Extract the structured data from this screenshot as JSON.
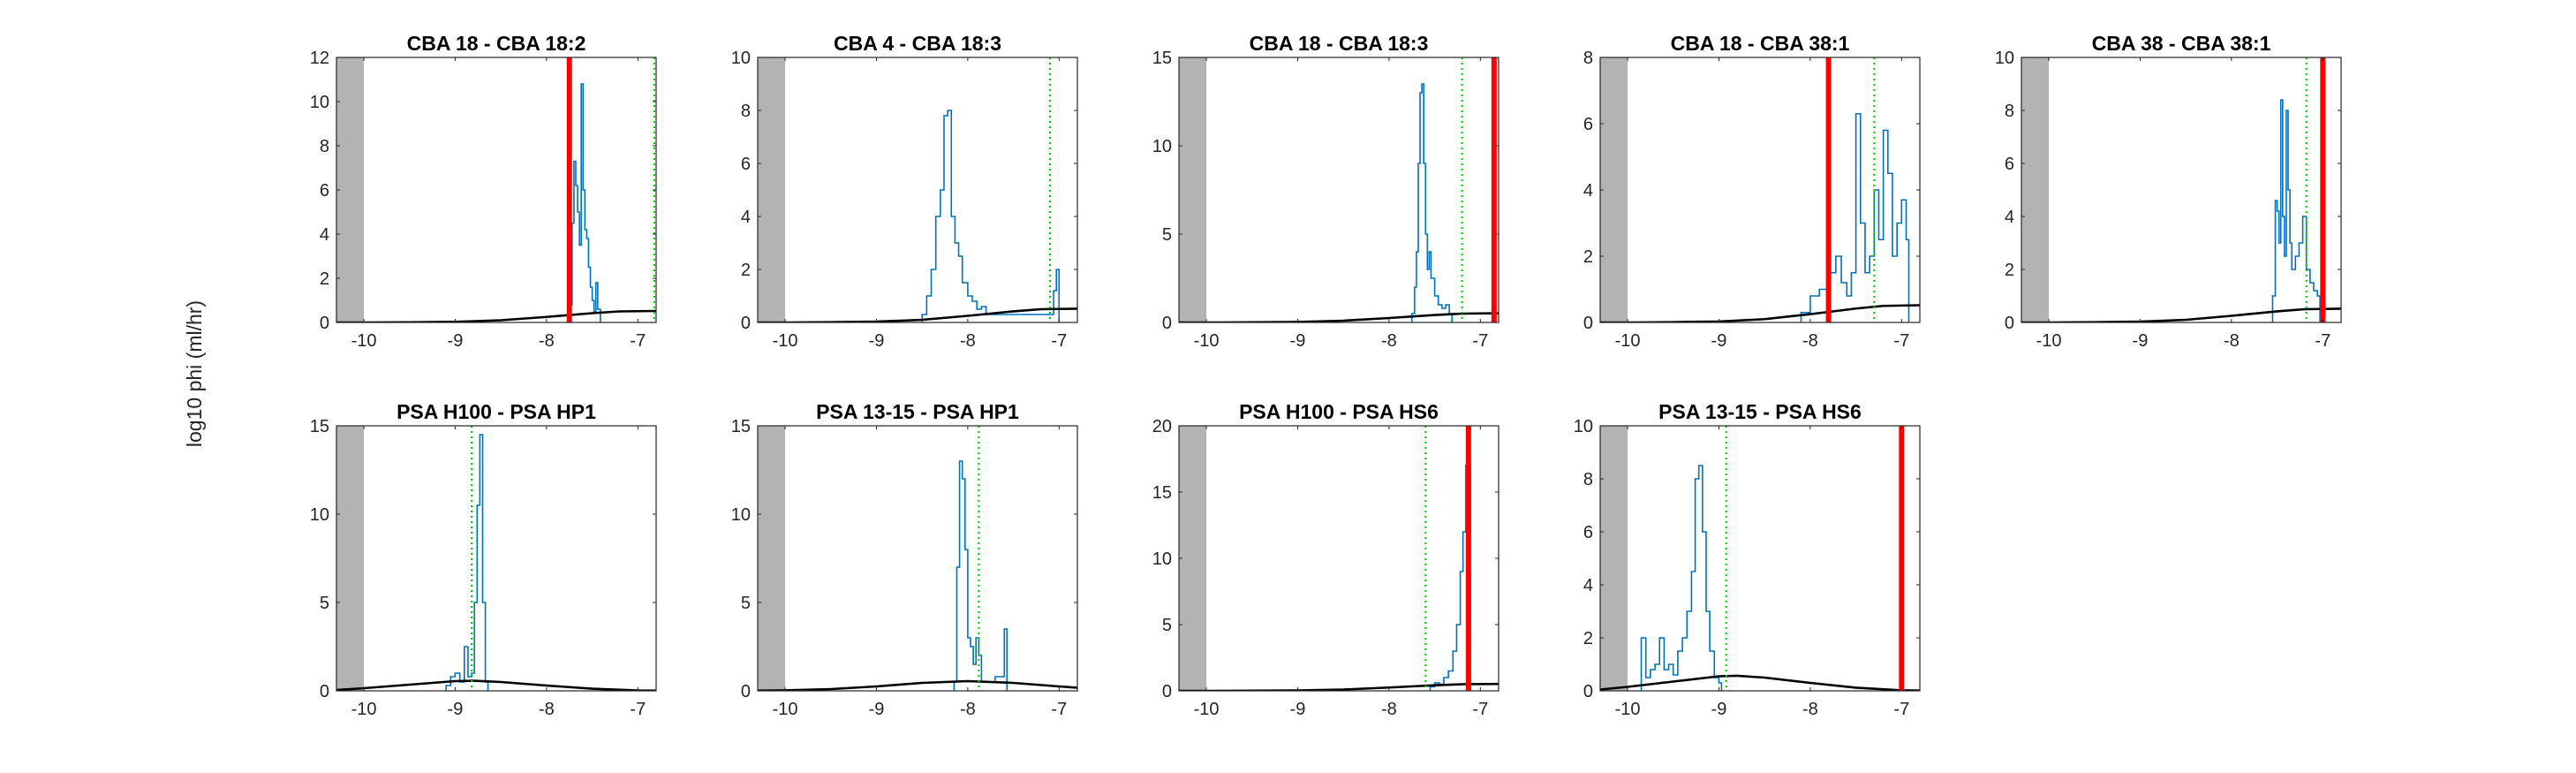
{
  "figure": {
    "ylabel": "log10 phi (ml/hr)"
  },
  "colors": {
    "histogram": "#0072BD",
    "prior_curve": "#000000",
    "threshold_line": "#FF0000",
    "dotted_line": "#00CC00",
    "masked_region": "#B3B3B3"
  },
  "chart_data": [
    {
      "type": "line",
      "title": "CBA 18 - CBA 18:2",
      "xlim": [
        -10.3,
        -6.8
      ],
      "ylim": [
        0,
        12
      ],
      "xticks": [
        -10,
        -9,
        -8,
        -7
      ],
      "yticks": [
        0,
        2,
        4,
        6,
        8,
        10,
        12
      ],
      "gray_region": [
        -10.3,
        -10.0
      ],
      "red_line_x": -7.75,
      "green_dotted_x": -6.82,
      "prior_curve": {
        "x": [
          -10.3,
          -10.0,
          -9.5,
          -9.0,
          -8.5,
          -8.0,
          -7.5,
          -7.2,
          -6.8
        ],
        "y": [
          0.0,
          0.0,
          0.01,
          0.03,
          0.1,
          0.25,
          0.42,
          0.5,
          0.52
        ]
      },
      "histogram": {
        "x": [
          -7.75,
          -7.72,
          -7.7,
          -7.68,
          -7.66,
          -7.64,
          -7.62,
          -7.6,
          -7.58,
          -7.56,
          -7.54,
          -7.52,
          -7.5,
          -7.48,
          -7.46,
          -7.44
        ],
        "y": [
          0.8,
          4.5,
          7.3,
          6.2,
          5.0,
          3.5,
          10.8,
          6.0,
          4.2,
          3.8,
          2.5,
          1.6,
          1.0,
          0.5,
          1.8,
          0.6
        ]
      }
    },
    {
      "type": "line",
      "title": "CBA 4 - CBA 18:3",
      "xlim": [
        -10.3,
        -6.8
      ],
      "ylim": [
        0,
        10
      ],
      "xticks": [
        -10,
        -9,
        -8,
        -7
      ],
      "yticks": [
        0,
        2,
        4,
        6,
        8,
        10
      ],
      "gray_region": [
        -10.3,
        -10.0
      ],
      "red_line_x": null,
      "green_dotted_x": -7.1,
      "prior_curve": {
        "x": [
          -10.3,
          -10.0,
          -9.5,
          -9.0,
          -8.5,
          -8.0,
          -7.5,
          -7.2,
          -6.8
        ],
        "y": [
          0.0,
          0.0,
          0.01,
          0.03,
          0.1,
          0.25,
          0.42,
          0.5,
          0.52
        ]
      },
      "histogram": {
        "x": [
          -8.5,
          -8.45,
          -8.4,
          -8.35,
          -8.3,
          -8.26,
          -8.22,
          -8.18,
          -8.14,
          -8.1,
          -8.06,
          -8.0,
          -7.95,
          -7.9,
          -7.85,
          -7.8,
          -7.06,
          -7.03
        ],
        "y": [
          0.3,
          1.0,
          2.0,
          4.0,
          5.0,
          7.8,
          8.0,
          4.0,
          3.0,
          2.5,
          1.5,
          1.0,
          0.8,
          0.5,
          0.6,
          0.3,
          1.2,
          2.0
        ]
      }
    },
    {
      "type": "line",
      "title": "CBA 18 - CBA 18:3",
      "xlim": [
        -10.3,
        -6.8
      ],
      "ylim": [
        0,
        15
      ],
      "xticks": [
        -10,
        -9,
        -8,
        -7
      ],
      "yticks": [
        0,
        5,
        10,
        15
      ],
      "gray_region": [
        -10.3,
        -10.0
      ],
      "red_line_x": -6.85,
      "green_dotted_x": -7.2,
      "prior_curve": {
        "x": [
          -10.3,
          -10.0,
          -9.5,
          -9.0,
          -8.5,
          -8.0,
          -7.5,
          -7.2,
          -6.8
        ],
        "y": [
          0.0,
          0.0,
          0.01,
          0.03,
          0.1,
          0.25,
          0.42,
          0.5,
          0.52
        ]
      },
      "histogram": {
        "x": [
          -7.75,
          -7.72,
          -7.7,
          -7.68,
          -7.66,
          -7.64,
          -7.62,
          -7.6,
          -7.58,
          -7.56,
          -7.54,
          -7.5,
          -7.46,
          -7.42,
          -7.38,
          -7.34
        ],
        "y": [
          0.5,
          2.0,
          4.0,
          9.0,
          13.0,
          13.5,
          9.0,
          5.0,
          3.0,
          4.0,
          2.5,
          1.5,
          1.0,
          0.8,
          1.0,
          0.5
        ]
      }
    },
    {
      "type": "line",
      "title": "CBA 18 - CBA 38:1",
      "xlim": [
        -10.3,
        -6.8
      ],
      "ylim": [
        0,
        8
      ],
      "xticks": [
        -10,
        -9,
        -8,
        -7
      ],
      "yticks": [
        0,
        2,
        4,
        6,
        8
      ],
      "gray_region": [
        -10.3,
        -10.0
      ],
      "red_line_x": -7.8,
      "green_dotted_x": -7.3,
      "prior_curve": {
        "x": [
          -10.3,
          -10.0,
          -9.5,
          -9.0,
          -8.5,
          -8.0,
          -7.5,
          -7.2,
          -6.8
        ],
        "y": [
          0.0,
          0.0,
          0.01,
          0.03,
          0.1,
          0.25,
          0.42,
          0.5,
          0.52
        ]
      },
      "histogram": {
        "x": [
          -8.1,
          -8.0,
          -7.9,
          -7.8,
          -7.72,
          -7.66,
          -7.6,
          -7.55,
          -7.5,
          -7.45,
          -7.4,
          -7.35,
          -7.3,
          -7.25,
          -7.2,
          -7.15,
          -7.1,
          -7.05,
          -7.0,
          -6.95
        ],
        "y": [
          0.3,
          0.8,
          1.0,
          1.5,
          2.0,
          1.2,
          0.8,
          1.5,
          6.3,
          3.0,
          1.5,
          2.0,
          4.0,
          2.5,
          5.8,
          4.5,
          2.0,
          3.0,
          3.7,
          2.5
        ]
      }
    },
    {
      "type": "line",
      "title": "CBA 38 - CBA 38:1",
      "xlim": [
        -10.3,
        -6.8
      ],
      "ylim": [
        0,
        10
      ],
      "xticks": [
        -10,
        -9,
        -8,
        -7
      ],
      "yticks": [
        0,
        2,
        4,
        6,
        8,
        10
      ],
      "gray_region": [
        -10.3,
        -10.0
      ],
      "red_line_x": -7.0,
      "green_dotted_x": -7.18,
      "prior_curve": {
        "x": [
          -10.3,
          -10.0,
          -9.5,
          -9.0,
          -8.5,
          -8.0,
          -7.5,
          -7.2,
          -6.8
        ],
        "y": [
          0.0,
          0.0,
          0.01,
          0.03,
          0.1,
          0.25,
          0.42,
          0.5,
          0.52
        ]
      },
      "histogram": {
        "x": [
          -7.55,
          -7.52,
          -7.5,
          -7.48,
          -7.46,
          -7.44,
          -7.42,
          -7.4,
          -7.38,
          -7.36,
          -7.34,
          -7.3,
          -7.26,
          -7.22,
          -7.18,
          -7.14,
          -7.1,
          -7.06
        ],
        "y": [
          1.0,
          4.6,
          4.2,
          3.0,
          8.4,
          4.0,
          2.5,
          8.0,
          5.0,
          3.0,
          2.0,
          2.5,
          3.0,
          4.0,
          2.0,
          1.5,
          1.2,
          1.0
        ]
      }
    },
    {
      "type": "line",
      "title": "PSA H100 - PSA HP1",
      "xlim": [
        -10.3,
        -6.8
      ],
      "ylim": [
        0,
        15
      ],
      "xticks": [
        -10,
        -9,
        -8,
        -7
      ],
      "yticks": [
        0,
        5,
        10,
        15
      ],
      "gray_region": [
        -10.3,
        -10.0
      ],
      "red_line_x": null,
      "green_dotted_x": -8.82,
      "prior_curve": {
        "x": [
          -10.3,
          -10.0,
          -9.5,
          -9.0,
          -8.8,
          -8.5,
          -8.0,
          -7.5,
          -7.0,
          -6.8
        ],
        "y": [
          0.05,
          0.15,
          0.35,
          0.55,
          0.57,
          0.5,
          0.3,
          0.12,
          0.02,
          0.01
        ]
      },
      "histogram": {
        "x": [
          -9.1,
          -9.05,
          -9.0,
          -8.95,
          -8.9,
          -8.86,
          -8.82,
          -8.79,
          -8.76,
          -8.73,
          -8.7,
          -8.67
        ],
        "y": [
          0.3,
          0.8,
          1.0,
          0.5,
          2.5,
          0.8,
          1.0,
          5.0,
          10.5,
          14.5,
          5.0,
          0.5
        ]
      }
    },
    {
      "type": "line",
      "title": "PSA 13-15 - PSA HP1",
      "xlim": [
        -10.3,
        -6.8
      ],
      "ylim": [
        0,
        15
      ],
      "xticks": [
        -10,
        -9,
        -8,
        -7
      ],
      "yticks": [
        0,
        5,
        10,
        15
      ],
      "gray_region": [
        -10.3,
        -10.0
      ],
      "red_line_x": null,
      "green_dotted_x": -7.88,
      "prior_curve": {
        "x": [
          -10.3,
          -10.0,
          -9.5,
          -9.0,
          -8.5,
          -8.0,
          -7.5,
          -7.0,
          -6.8
        ],
        "y": [
          0.01,
          0.03,
          0.1,
          0.25,
          0.45,
          0.55,
          0.45,
          0.25,
          0.18
        ]
      },
      "histogram": {
        "x": [
          -8.15,
          -8.12,
          -8.09,
          -8.06,
          -8.03,
          -8.0,
          -7.97,
          -7.94,
          -7.91,
          -7.88,
          -7.85,
          -7.7,
          -7.6
        ],
        "y": [
          0.5,
          7.0,
          13.0,
          12.0,
          8.0,
          3.0,
          2.5,
          1.5,
          3.0,
          2.0,
          0.5,
          0.8,
          3.5
        ]
      }
    },
    {
      "type": "line",
      "title": "PSA H100 - PSA HS6",
      "xlim": [
        -10.3,
        -6.8
      ],
      "ylim": [
        0,
        20
      ],
      "xticks": [
        -10,
        -9,
        -8,
        -7
      ],
      "yticks": [
        0,
        5,
        10,
        15,
        20
      ],
      "gray_region": [
        -10.3,
        -10.0
      ],
      "red_line_x": -7.13,
      "green_dotted_x": -7.6,
      "prior_curve": {
        "x": [
          -10.3,
          -10.0,
          -9.5,
          -9.0,
          -8.5,
          -8.0,
          -7.5,
          -7.2,
          -6.8
        ],
        "y": [
          0.0,
          0.0,
          0.01,
          0.03,
          0.1,
          0.25,
          0.42,
          0.5,
          0.52
        ]
      },
      "histogram": {
        "x": [
          -7.55,
          -7.5,
          -7.45,
          -7.4,
          -7.35,
          -7.3,
          -7.26,
          -7.22,
          -7.19,
          -7.16,
          -7.14
        ],
        "y": [
          0.3,
          0.6,
          0.5,
          1.0,
          1.5,
          3.0,
          5.0,
          9.0,
          12.0,
          17.0,
          17.5
        ]
      }
    },
    {
      "type": "line",
      "title": "PSA 13-15 - PSA HS6",
      "xlim": [
        -10.3,
        -6.8
      ],
      "ylim": [
        0,
        10
      ],
      "xticks": [
        -10,
        -9,
        -8,
        -7
      ],
      "yticks": [
        0,
        2,
        4,
        6,
        8,
        10
      ],
      "gray_region": [
        -10.3,
        -10.0
      ],
      "red_line_x": -7.0,
      "green_dotted_x": -8.92,
      "prior_curve": {
        "x": [
          -10.3,
          -10.0,
          -9.5,
          -9.0,
          -8.8,
          -8.5,
          -8.0,
          -7.5,
          -7.0,
          -6.8
        ],
        "y": [
          0.05,
          0.15,
          0.35,
          0.55,
          0.57,
          0.5,
          0.3,
          0.12,
          0.02,
          0.01
        ]
      },
      "histogram": {
        "x": [
          -9.85,
          -9.8,
          -9.75,
          -9.7,
          -9.65,
          -9.6,
          -9.55,
          -9.5,
          -9.45,
          -9.4,
          -9.35,
          -9.3,
          -9.26,
          -9.22,
          -9.18,
          -9.14,
          -9.1,
          -9.05,
          -9.0
        ],
        "y": [
          2.0,
          0.5,
          0.8,
          1.0,
          2.0,
          0.8,
          1.0,
          0.6,
          1.5,
          2.0,
          3.0,
          4.5,
          8.0,
          8.5,
          6.0,
          3.0,
          1.5,
          0.5,
          0.3
        ]
      }
    }
  ]
}
